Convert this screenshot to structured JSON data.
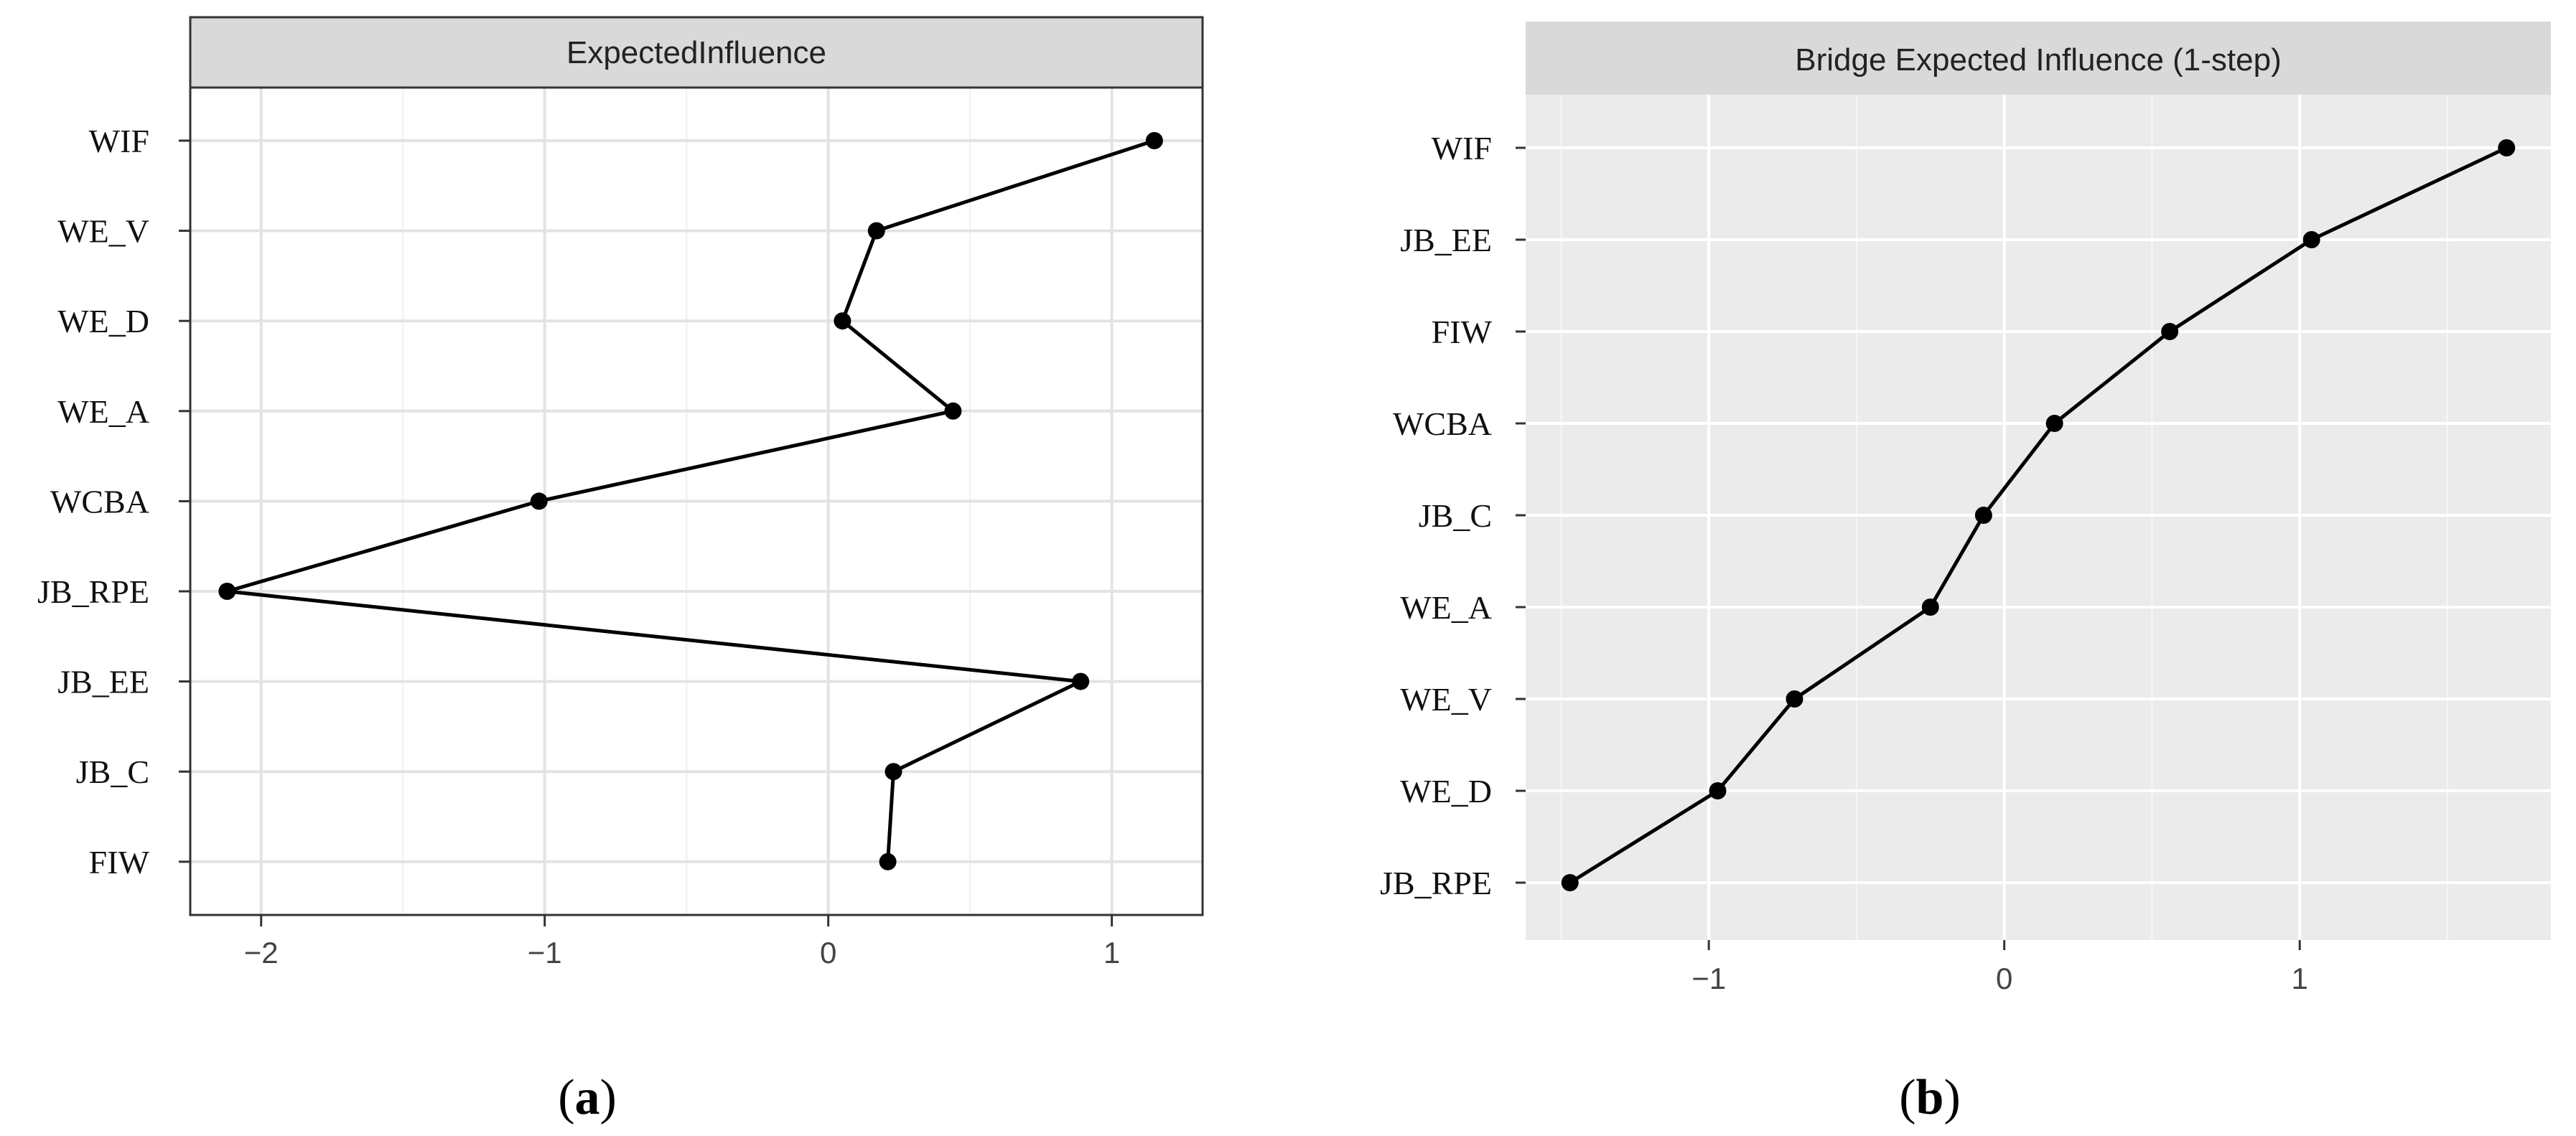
{
  "chart_data": [
    {
      "type": "line",
      "title": "ExpectedInfluence",
      "caption_letter": "a",
      "categories": [
        "WIF",
        "WE_V",
        "WE_D",
        "WE_A",
        "WCBA",
        "JB_RPE",
        "JB_EE",
        "JB_C",
        "FIW"
      ],
      "values": [
        1.15,
        0.17,
        0.05,
        0.44,
        -1.02,
        -2.12,
        0.89,
        0.23,
        0.21
      ],
      "x_ticks": [
        -2,
        -1,
        0,
        1
      ],
      "x_tick_labels": [
        "−2",
        "−1",
        "0",
        "1"
      ],
      "xlim": [
        -2.25,
        1.32
      ],
      "orientation": "horizontal",
      "grid": true,
      "panel_background": "#ffffff",
      "strip_background": "#d9d9d9",
      "line_color": "#000000"
    },
    {
      "type": "line",
      "title": "Bridge Expected Influence (1-step)",
      "caption_letter": "b",
      "categories": [
        "WIF",
        "JB_EE",
        "FIW",
        "WCBA",
        "JB_C",
        "WE_A",
        "WE_V",
        "WE_D",
        "JB_RPE"
      ],
      "values": [
        1.7,
        1.04,
        0.56,
        0.17,
        -0.07,
        -0.25,
        -0.71,
        -0.97,
        -1.47
      ],
      "x_ticks": [
        -1,
        0,
        1
      ],
      "x_tick_labels": [
        "−1",
        "0",
        "1"
      ],
      "xlim": [
        -1.62,
        1.85
      ],
      "orientation": "horizontal",
      "grid": true,
      "panel_background": "#ebebeb",
      "strip_background": "#d9d9d9",
      "line_color": "#000000"
    }
  ]
}
